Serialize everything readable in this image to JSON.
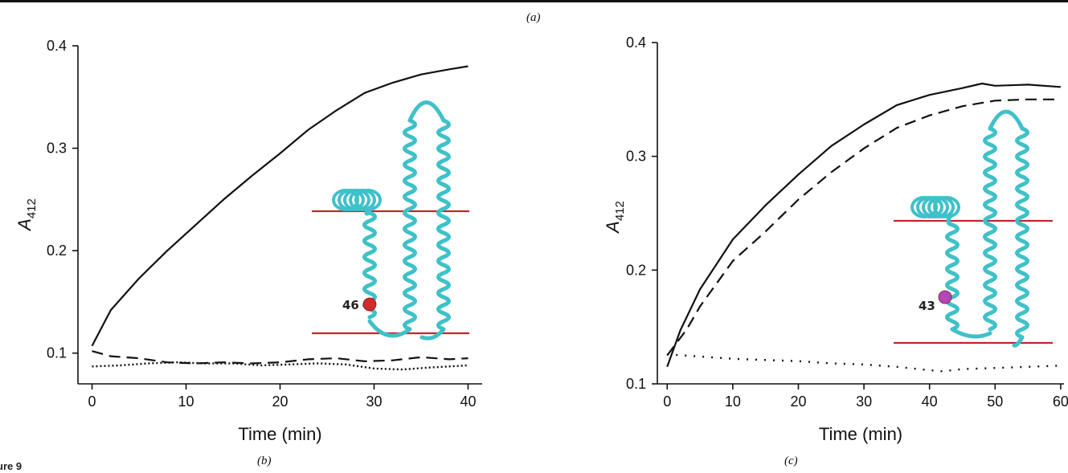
{
  "panel_labels": {
    "a": "(a)",
    "b": "(b)",
    "c": "(c)"
  },
  "figure_tag": "ure 9",
  "helix_color": "#3fc1c9",
  "membrane_line_color": "#c0282d",
  "chart_data": [
    {
      "id": "b",
      "type": "line",
      "xlabel": "Time (min)",
      "ylabel_main": "A",
      "ylabel_sub": "412",
      "xlim": [
        -1.5,
        41.5
      ],
      "ylim": [
        0.07,
        0.4
      ],
      "xticks": [
        0,
        10,
        20,
        30,
        40
      ],
      "yticks": [
        0.1,
        0.2,
        0.3,
        0.4
      ],
      "grid": false,
      "series": [
        {
          "style": "solid",
          "x": [
            0,
            2,
            5,
            8,
            11,
            14,
            17,
            20,
            23,
            26,
            29,
            32,
            35,
            38,
            40
          ],
          "y": [
            0.107,
            0.142,
            0.173,
            0.2,
            0.225,
            0.25,
            0.273,
            0.295,
            0.318,
            0.337,
            0.354,
            0.364,
            0.372,
            0.377,
            0.38
          ]
        },
        {
          "style": "dashed",
          "x": [
            0,
            2,
            5,
            8,
            11,
            14,
            17,
            20,
            23,
            26,
            29,
            32,
            35,
            38,
            40
          ],
          "y": [
            0.102,
            0.097,
            0.095,
            0.091,
            0.09,
            0.091,
            0.09,
            0.091,
            0.094,
            0.095,
            0.092,
            0.093,
            0.096,
            0.094,
            0.095
          ]
        },
        {
          "style": "dotted",
          "x": [
            0,
            3,
            6,
            9,
            12,
            15,
            18,
            21,
            24,
            27,
            30,
            33,
            36,
            40
          ],
          "y": [
            0.087,
            0.088,
            0.09,
            0.091,
            0.09,
            0.09,
            0.088,
            0.089,
            0.09,
            0.089,
            0.085,
            0.084,
            0.086,
            0.088
          ]
        }
      ],
      "inset": {
        "residue": "46",
        "residue_color": "#d42a2a"
      }
    },
    {
      "id": "c",
      "type": "line",
      "xlabel": "Time (min)",
      "ylabel_main": "A",
      "ylabel_sub": "412",
      "xlim": [
        -1.5,
        60.5
      ],
      "ylim": [
        0.1,
        0.4
      ],
      "xticks": [
        0,
        10,
        20,
        30,
        40,
        50,
        60
      ],
      "yticks": [
        0.1,
        0.2,
        0.3,
        0.4
      ],
      "grid": false,
      "series": [
        {
          "style": "solid",
          "x": [
            0,
            2,
            5,
            10,
            15,
            20,
            25,
            30,
            35,
            40,
            45,
            48,
            50,
            55,
            60
          ],
          "y": [
            0.115,
            0.147,
            0.183,
            0.227,
            0.257,
            0.284,
            0.309,
            0.328,
            0.345,
            0.354,
            0.36,
            0.364,
            0.362,
            0.363,
            0.361
          ]
        },
        {
          "style": "dashed",
          "x": [
            0,
            3,
            5,
            10,
            15,
            20,
            25,
            30,
            35,
            40,
            45,
            50,
            55,
            60
          ],
          "y": [
            0.125,
            0.148,
            0.168,
            0.208,
            0.234,
            0.262,
            0.286,
            0.307,
            0.325,
            0.336,
            0.344,
            0.349,
            0.35,
            0.35
          ]
        },
        {
          "style": "dotted",
          "x": [
            0,
            5,
            10,
            15,
            20,
            25,
            30,
            35,
            40,
            42,
            45,
            50,
            55,
            60
          ],
          "y": [
            0.126,
            0.124,
            0.122,
            0.121,
            0.12,
            0.118,
            0.117,
            0.115,
            0.112,
            0.111,
            0.113,
            0.114,
            0.115,
            0.116
          ]
        }
      ],
      "inset": {
        "residue": "43",
        "residue_color": "#b546b8"
      }
    }
  ]
}
